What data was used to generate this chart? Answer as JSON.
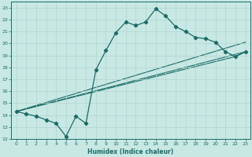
{
  "title": "",
  "xlabel": "Humidex (Indice chaleur)",
  "xlim": [
    -0.5,
    23.5
  ],
  "ylim": [
    12,
    23.5
  ],
  "xticks": [
    0,
    1,
    2,
    3,
    4,
    5,
    6,
    7,
    8,
    9,
    10,
    11,
    12,
    13,
    14,
    15,
    16,
    17,
    18,
    19,
    20,
    21,
    22,
    23
  ],
  "yticks": [
    12,
    13,
    14,
    15,
    16,
    17,
    18,
    19,
    20,
    21,
    22,
    23
  ],
  "bg_color": "#c8e8e4",
  "line_color": "#1a6b66",
  "grid_color": "#b0d4d0",
  "curve_x": [
    0,
    1,
    2,
    3,
    4,
    5,
    6,
    7,
    8,
    9,
    10,
    11,
    12,
    13,
    14,
    15,
    16,
    17,
    18,
    19,
    20,
    21,
    22,
    23
  ],
  "curve_y": [
    14.3,
    14.1,
    13.9,
    13.6,
    13.3,
    12.2,
    13.9,
    13.3,
    17.8,
    19.4,
    20.9,
    21.8,
    21.5,
    21.8,
    22.9,
    22.3,
    21.4,
    21.0,
    20.5,
    20.4,
    20.1,
    19.3,
    18.9,
    19.3
  ],
  "line1_x": [
    0,
    23
  ],
  "line1_y": [
    14.3,
    19.3
  ],
  "line2_x": [
    0,
    23
  ],
  "line2_y": [
    14.3,
    20.1
  ],
  "line3_x": [
    0,
    22,
    23
  ],
  "line3_y": [
    14.3,
    18.9,
    19.3
  ]
}
